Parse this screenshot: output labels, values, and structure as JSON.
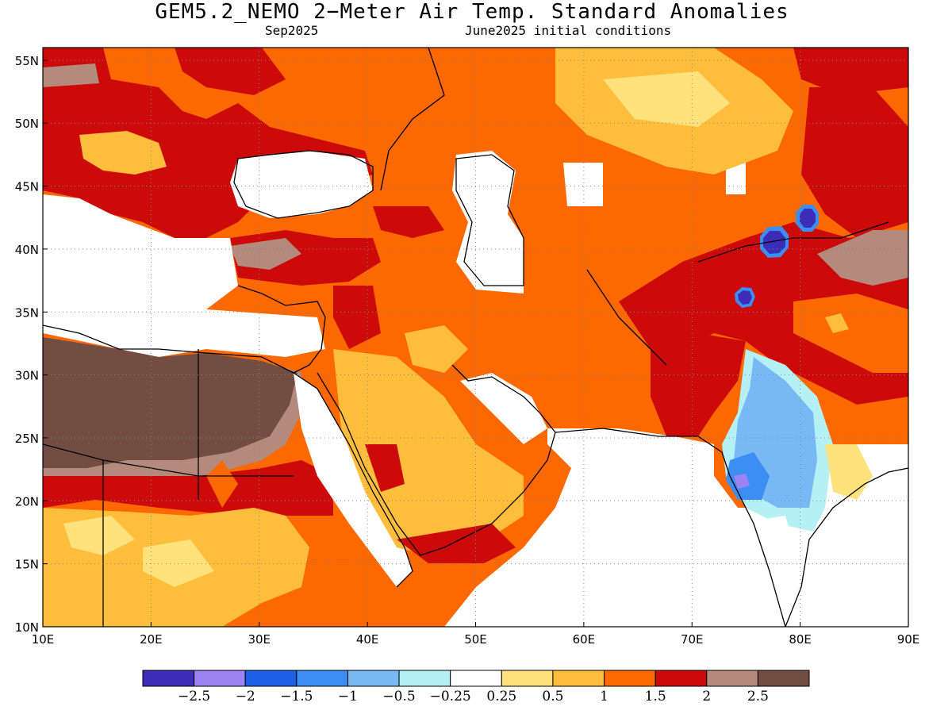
{
  "title": "GEM5.2_NEMO 2−Meter Air Temp. Standard Anomalies",
  "subtitle_left": "Sep2025",
  "subtitle_right": "June2025 initial conditions",
  "map": {
    "lon_range": [
      10,
      90
    ],
    "lat_range": [
      10,
      56
    ],
    "x_ticks": [
      "10E",
      "20E",
      "30E",
      "40E",
      "50E",
      "60E",
      "70E",
      "80E",
      "90E"
    ],
    "y_ticks": [
      "10N",
      "15N",
      "20N",
      "25N",
      "30N",
      "35N",
      "40N",
      "45N",
      "50N",
      "55N"
    ],
    "x_tick_values": [
      10,
      20,
      30,
      40,
      50,
      60,
      70,
      80,
      90
    ],
    "y_tick_values": [
      10,
      15,
      20,
      25,
      30,
      35,
      40,
      45,
      50,
      55
    ],
    "grid": "dotted"
  },
  "colorbar": {
    "colors": [
      "#3b2db6",
      "#9d83f2",
      "#1e5fe6",
      "#3d8ef2",
      "#78b8f4",
      "#b4f0f4",
      "#ffffff",
      "#ffe27c",
      "#ffbd3c",
      "#fd6800",
      "#cc0a0a",
      "#b38a7c",
      "#734d42"
    ],
    "labels": [
      "−2.5",
      "−2",
      "−1.5",
      "−1",
      "−0.5",
      "−0.25",
      "0.25",
      "0.5",
      "1",
      "1.5",
      "2",
      "2.5"
    ]
  },
  "field_regions": [
    {
      "name": "background-warm",
      "color": "#fd6800"
    },
    {
      "name": "north-africa-brown",
      "color": "#734d42"
    },
    {
      "name": "north-africa-mauve",
      "color": "#b38a7c"
    },
    {
      "name": "sahel-red",
      "color": "#cc0a0a"
    },
    {
      "name": "sahel-yellow",
      "color": "#ffbd3c"
    },
    {
      "name": "arabia-yellow",
      "color": "#ffbd3c"
    },
    {
      "name": "central-asia-yellow",
      "color": "#ffbd3c"
    },
    {
      "name": "india-light-blue",
      "color": "#78b8f4"
    },
    {
      "name": "india-cyan",
      "color": "#b4f0f4"
    },
    {
      "name": "india-blue",
      "color": "#3d8ef2"
    },
    {
      "name": "tarim-dark-blue",
      "color": "#3b2db6"
    }
  ]
}
